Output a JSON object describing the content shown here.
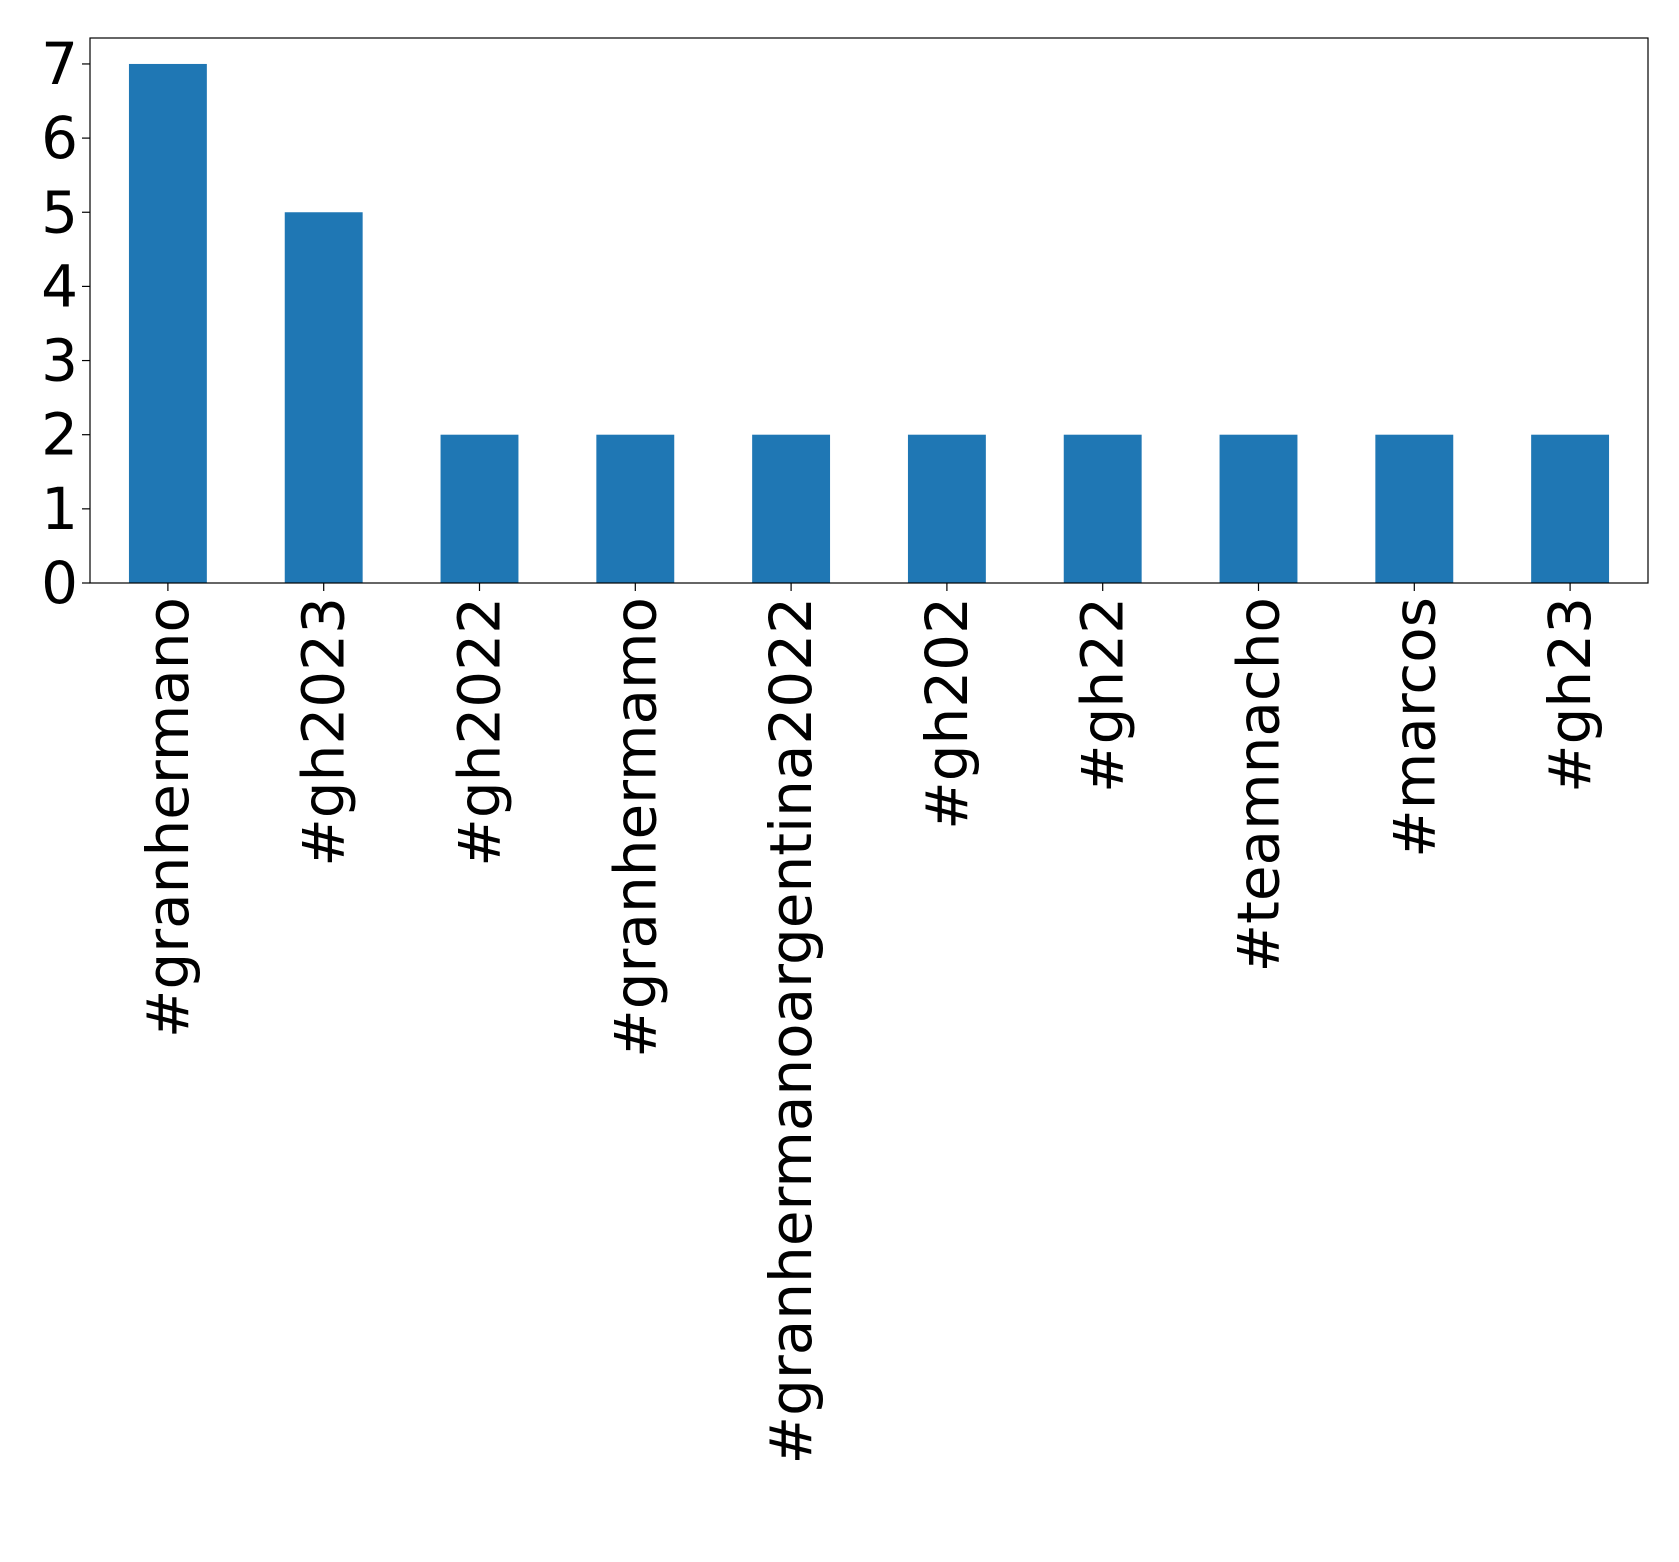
{
  "chart_data": {
    "type": "bar",
    "title": "",
    "xlabel": "",
    "ylabel": "",
    "categories": [
      "#granhermano",
      "#gh2023",
      "#gh2022",
      "#granhermamo",
      "#granhermanoargentina2022",
      "#gh202",
      "#gh22",
      "#teamnacho",
      "#marcos",
      "#gh23"
    ],
    "values": [
      7,
      5,
      2,
      2,
      2,
      2,
      2,
      2,
      2,
      2
    ],
    "ylim": [
      0,
      7.35
    ],
    "yticks": [
      0,
      1,
      2,
      3,
      4,
      5,
      6,
      7
    ],
    "grid": false,
    "legend": "none",
    "bar_color": "#1f77b4"
  }
}
